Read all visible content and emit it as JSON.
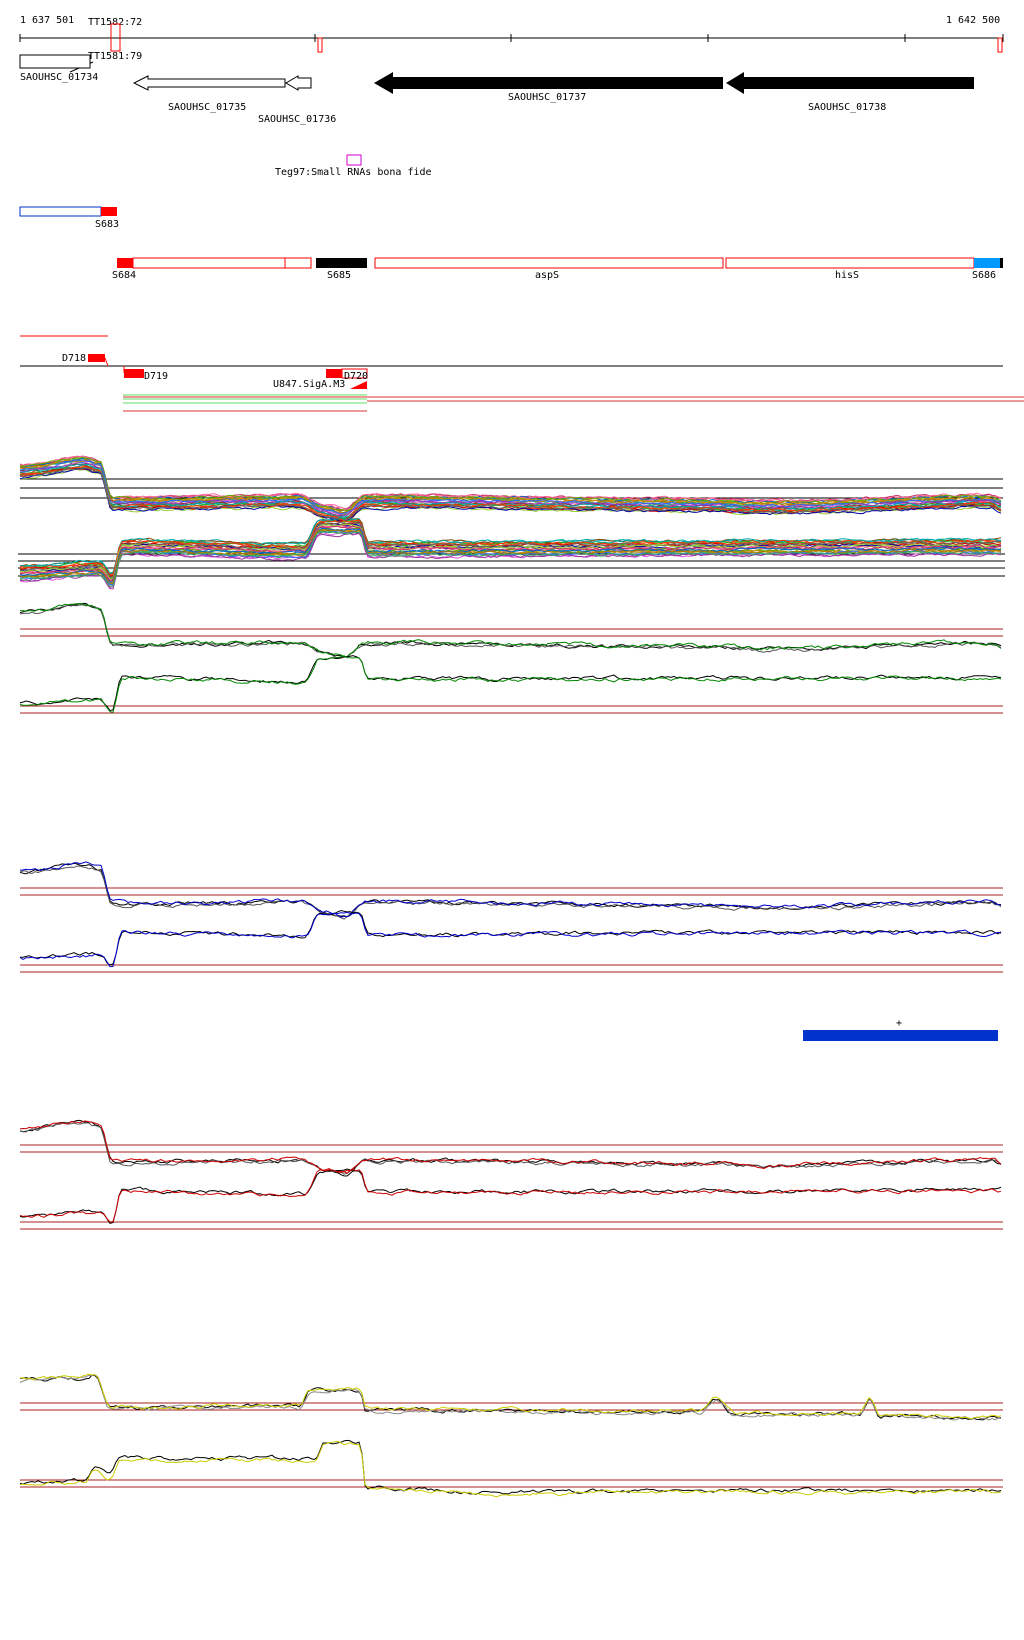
{
  "ruler": {
    "start_label": "1 637 501",
    "end_label": "1 642 500"
  },
  "terminators": {
    "tt1582": "TT1582:72",
    "tt1581": "TT1581:79"
  },
  "genes": {
    "g1734": "SAOUHSC_01734",
    "g1735": "SAOUHSC_01735",
    "g1736": "SAOUHSC_01736",
    "g1737": "SAOUHSC_01737",
    "g1738": "SAOUHSC_01738"
  },
  "srna": {
    "teg97": "Teg97:Small RNAs bona fide"
  },
  "segments": {
    "s683": "S683",
    "s684": "S684",
    "s685": "S685",
    "asps": "aspS",
    "hiss": "hisS",
    "s686": "S686"
  },
  "down_regions": {
    "d718": "D718",
    "d719": "D719",
    "d720": "D720",
    "u847": "U847.SigA.M3"
  },
  "marker": {
    "plus": "+"
  },
  "colors": {
    "segment_red": "#ff0000",
    "gene_black": "#000000",
    "srna_magenta": "#cc00cc",
    "blue_feature": "#0033cc",
    "s686_blue": "#0099ff",
    "cond_green": "#008800",
    "cond_blue": "#0000cc",
    "cond_red": "#cc0000",
    "cond_yellow": "#cccc00"
  }
}
